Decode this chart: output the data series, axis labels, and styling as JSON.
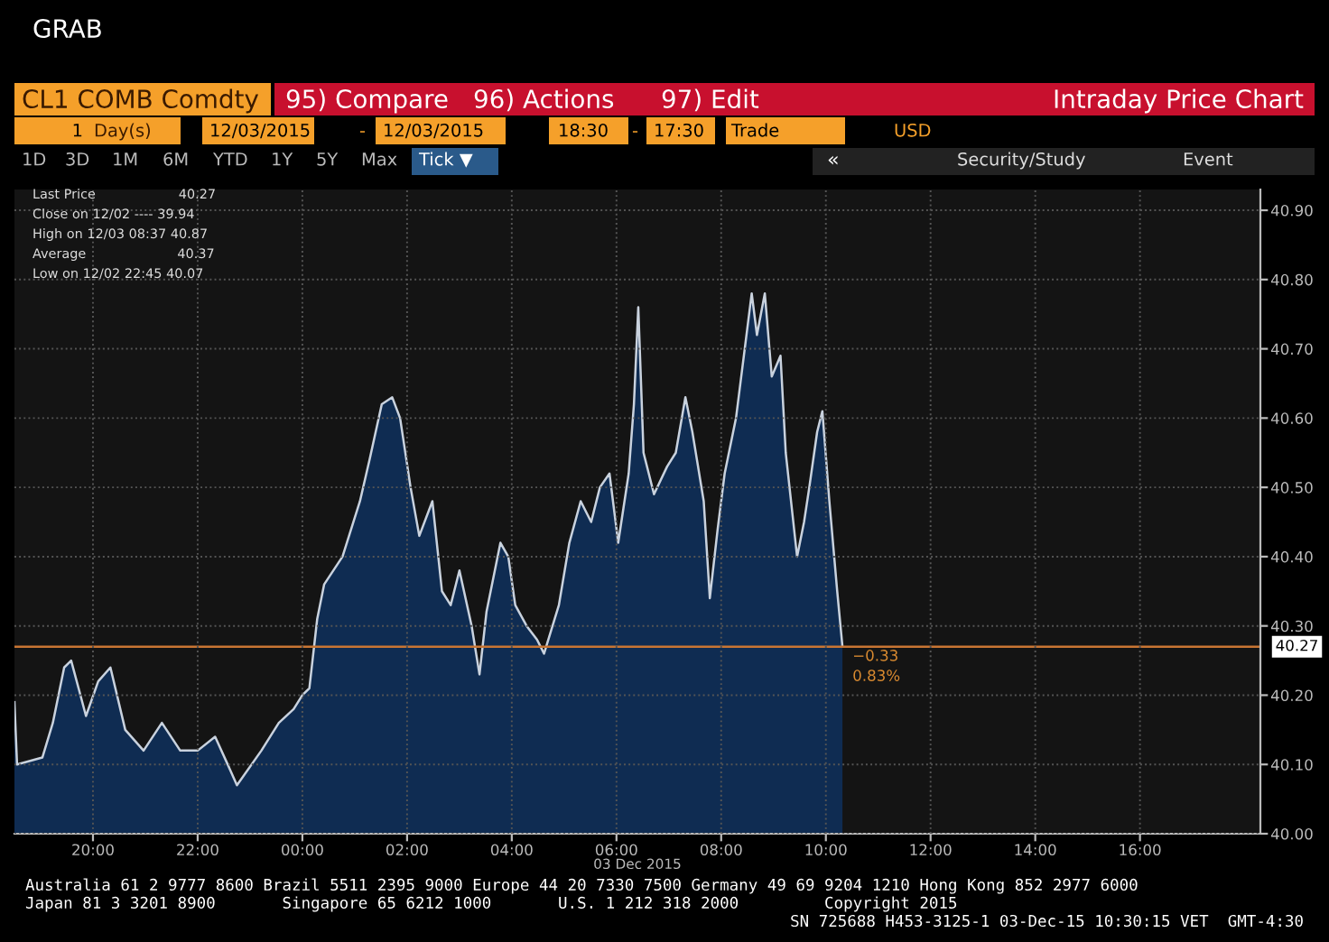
{
  "chart_data": {
    "type": "area",
    "title": "Intraday Price Chart",
    "subtitle": "CL1 COMB Comdty",
    "xlabel": "03 Dec 2015",
    "x": [
      "2015-12-02T18:30",
      "2015-12-02T18:33",
      "2015-12-02T19:02",
      "2015-12-02T19:14",
      "2015-12-02T19:27",
      "2015-12-02T19:35",
      "2015-12-02T19:52",
      "2015-12-02T20:06",
      "2015-12-02T20:20",
      "2015-12-02T20:37",
      "2015-12-02T20:58",
      "2015-12-02T21:19",
      "2015-12-02T21:40",
      "2015-12-02T22:00",
      "2015-12-02T22:20",
      "2015-12-02T22:38",
      "2015-12-02T22:45",
      "2015-12-02T23:13",
      "2015-12-02T23:33",
      "2015-12-02T23:50",
      "2015-12-03T00:00",
      "2015-12-03T00:08",
      "2015-12-03T00:17",
      "2015-12-03T00:25",
      "2015-12-03T00:46",
      "2015-12-03T01:06",
      "2015-12-03T01:17",
      "2015-12-03T01:31",
      "2015-12-03T01:43",
      "2015-12-03T01:52",
      "2015-12-03T02:04",
      "2015-12-03T02:14",
      "2015-12-03T02:29",
      "2015-12-03T02:40",
      "2015-12-03T02:50",
      "2015-12-03T03:00",
      "2015-12-03T03:14",
      "2015-12-03T03:23",
      "2015-12-03T03:31",
      "2015-12-03T03:47",
      "2015-12-03T03:56",
      "2015-12-03T04:04",
      "2015-12-03T04:17",
      "2015-12-03T04:29",
      "2015-12-03T04:37",
      "2015-12-03T04:54",
      "2015-12-03T05:06",
      "2015-12-03T05:19",
      "2015-12-03T05:31",
      "2015-12-03T05:41",
      "2015-12-03T05:52",
      "2015-12-03T06:02",
      "2015-12-03T06:14",
      "2015-12-03T06:20",
      "2015-12-03T06:25",
      "2015-12-03T06:31",
      "2015-12-03T06:43",
      "2015-12-03T06:58",
      "2015-12-03T07:08",
      "2015-12-03T07:19",
      "2015-12-03T07:27",
      "2015-12-03T07:40",
      "2015-12-03T07:47",
      "2015-12-03T07:56",
      "2015-12-03T08:04",
      "2015-12-03T08:17",
      "2015-12-03T08:27",
      "2015-12-03T08:35",
      "2015-12-03T08:41",
      "2015-12-03T08:50",
      "2015-12-03T08:58",
      "2015-12-03T09:08",
      "2015-12-03T09:14",
      "2015-12-03T09:27",
      "2015-12-03T09:35",
      "2015-12-03T09:41",
      "2015-12-03T09:50",
      "2015-12-03T09:56",
      "2015-12-03T10:04",
      "2015-12-03T10:13",
      "2015-12-03T10:19"
    ],
    "series": [
      {
        "color": "#0f2d55",
        "values": [
          40.19,
          40.1,
          40.11,
          40.16,
          40.24,
          40.25,
          40.17,
          40.22,
          40.24,
          40.15,
          40.12,
          40.16,
          40.12,
          40.12,
          40.14,
          40.09,
          40.07,
          40.12,
          40.16,
          40.18,
          40.2,
          40.21,
          40.31,
          40.36,
          40.4,
          40.48,
          40.54,
          40.62,
          40.63,
          40.6,
          40.5,
          40.43,
          40.48,
          40.35,
          40.33,
          40.38,
          40.3,
          40.23,
          40.32,
          40.42,
          40.4,
          40.33,
          40.3,
          40.28,
          40.26,
          40.33,
          40.42,
          40.48,
          40.45,
          40.5,
          40.52,
          40.42,
          40.52,
          40.62,
          40.76,
          40.55,
          40.49,
          40.53,
          40.55,
          40.63,
          40.58,
          40.48,
          40.34,
          40.44,
          40.52,
          40.6,
          40.7,
          40.78,
          40.72,
          40.78,
          40.66,
          40.69,
          40.55,
          40.4,
          40.45,
          40.5,
          40.58,
          40.61,
          40.48,
          40.35,
          40.27
        ]
      }
    ],
    "xlim": [
      "2015-12-02T18:30",
      "2015-12-03T18:18"
    ],
    "xticks": [
      {
        "value": "2015-12-02T20:00",
        "label": "20:00"
      },
      {
        "value": "2015-12-02T22:00",
        "label": "22:00"
      },
      {
        "value": "2015-12-03T00:00",
        "label": "00:00"
      },
      {
        "value": "2015-12-03T02:00",
        "label": "02:00"
      },
      {
        "value": "2015-12-03T04:00",
        "label": "04:00"
      },
      {
        "value": "2015-12-03T06:00",
        "label": "06:00"
      },
      {
        "value": "2015-12-03T08:00",
        "label": "08:00"
      },
      {
        "value": "2015-12-03T10:00",
        "label": "10:00"
      },
      {
        "value": "2015-12-03T12:00",
        "label": "12:00"
      },
      {
        "value": "2015-12-03T14:00",
        "label": "14:00"
      },
      {
        "value": "2015-12-03T16:00",
        "label": "16:00"
      }
    ],
    "ylim": [
      40.0,
      40.93
    ],
    "yticks": [
      {
        "value": 40.0,
        "label": "40.00"
      },
      {
        "value": 40.1,
        "label": "40.10"
      },
      {
        "value": 40.2,
        "label": "40.20"
      },
      {
        "value": 40.3,
        "label": "40.30"
      },
      {
        "value": 40.4,
        "label": "40.40"
      },
      {
        "value": 40.5,
        "label": "40.50"
      },
      {
        "value": 40.6,
        "label": "40.60"
      },
      {
        "value": 40.7,
        "label": "40.70"
      },
      {
        "value": 40.8,
        "label": "40.80"
      },
      {
        "value": 40.9,
        "label": "40.90"
      }
    ],
    "grid": true,
    "ref_lines": [
      {
        "axis": "y",
        "value": 40.27,
        "label": "40.27",
        "color": "#c87533"
      }
    ],
    "annotations": [
      {
        "text": "−0.33",
        "x": "2015-12-03T10:19",
        "y": 40.27
      },
      {
        "text": "0.83%",
        "x": "2015-12-03T10:19",
        "y": 40.27
      },
      "Last Price                    40.27",
      "Close on 12/02 ---- 39.94",
      "High on 12/03 08:37 40.87",
      "Average                      40.37",
      "Low on 12/02 22:45 40.07",
      "GRAB",
      "95) Compare",
      "96) Actions",
      "97) Edit",
      "1",
      "Day(s)",
      "12/03/2015",
      "-",
      "12/03/2015",
      "18:30",
      "-",
      "17:30",
      "Trade",
      "USD",
      "1D",
      "3D",
      "1M",
      "6M",
      "YTD",
      "1Y",
      "5Y",
      "Max",
      "Tick ▼",
      "«",
      "Security/Study",
      "Event",
      "Australia 61 2 9777 8600 Brazil 5511 2395 9000 Europe 44 20 7330 7500 Germany 49 69 9204 1210 Hong Kong 852 2977 6000",
      "Japan 81 3 3201 8900       Singapore 65 6212 1000       U.S. 1 212 318 2000         Copyright 2015",
      "SN 725688 H453-3125-1 03-Dec-15 10:30:15 VET  GMT-4:30"
    ]
  }
}
